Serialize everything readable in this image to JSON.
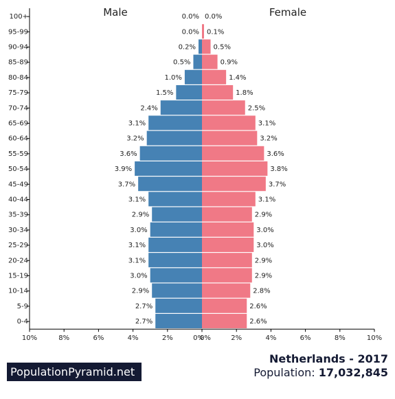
{
  "brand": {
    "label": "PopulationPyramid.net"
  },
  "footer": {
    "country_year": "Netherlands - 2017",
    "population_label": "Population: ",
    "population_value": "17,032,845"
  },
  "colors": {
    "male": "#4682b4",
    "female": "#f07986"
  },
  "chart_data": {
    "type": "bar",
    "orientation": "horizontal-pyramid",
    "categories": [
      "100+",
      "95-99",
      "90-94",
      "85-89",
      "80-84",
      "75-79",
      "70-74",
      "65-69",
      "60-64",
      "55-59",
      "50-54",
      "45-49",
      "40-44",
      "35-39",
      "30-34",
      "25-29",
      "20-24",
      "15-19",
      "10-14",
      "5-9",
      "0-4"
    ],
    "series": [
      {
        "name": "Male",
        "values": [
          0.0,
          0.0,
          0.2,
          0.5,
          1.0,
          1.5,
          2.4,
          3.1,
          3.2,
          3.6,
          3.9,
          3.7,
          3.1,
          2.9,
          3.0,
          3.1,
          3.1,
          3.0,
          2.9,
          2.7,
          2.7
        ],
        "labels": [
          "0.0%",
          "0.0%",
          "0.2%",
          "0.5%",
          "1.0%",
          "1.5%",
          "2.4%",
          "3.1%",
          "3.2%",
          "3.6%",
          "3.9%",
          "3.7%",
          "3.1%",
          "2.9%",
          "3.0%",
          "3.1%",
          "3.1%",
          "3.0%",
          "2.9%",
          "2.7%",
          "2.7%"
        ]
      },
      {
        "name": "Female",
        "values": [
          0.0,
          0.1,
          0.5,
          0.9,
          1.4,
          1.8,
          2.5,
          3.1,
          3.2,
          3.6,
          3.8,
          3.7,
          3.1,
          2.9,
          3.0,
          3.0,
          2.9,
          2.9,
          2.8,
          2.6,
          2.6
        ],
        "labels": [
          "0.0%",
          "0.1%",
          "0.5%",
          "0.9%",
          "1.4%",
          "1.8%",
          "2.5%",
          "3.1%",
          "3.2%",
          "3.6%",
          "3.8%",
          "3.7%",
          "3.1%",
          "2.9%",
          "3.0%",
          "3.0%",
          "2.9%",
          "2.9%",
          "2.8%",
          "2.6%",
          "2.6%"
        ]
      }
    ],
    "xlim": [
      0,
      10
    ],
    "x_ticks": [
      "10%",
      "8%",
      "6%",
      "4%",
      "2%",
      "0%",
      "0%",
      "2%",
      "4%",
      "6%",
      "8%",
      "10%"
    ],
    "legend": "top",
    "grid": false
  }
}
